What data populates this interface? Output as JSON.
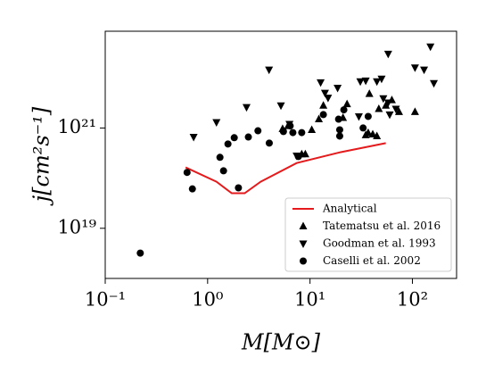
{
  "chart_data": {
    "type": "scatter",
    "xlabel": "M[M⊙]",
    "ylabel": "j[cm²s⁻¹]",
    "xscale": "log",
    "yscale": "log",
    "xlim": [
      0.1,
      270
    ],
    "ylim": [
      1e+18,
      8.5e+22
    ],
    "xticks": [
      {
        "value": 0.1,
        "label": "10⁻¹"
      },
      {
        "value": 1,
        "label": "10⁰"
      },
      {
        "value": 10,
        "label": "10¹"
      },
      {
        "value": 100,
        "label": "10²"
      }
    ],
    "yticks": [
      {
        "value": 1e+19,
        "label": "10¹⁹"
      },
      {
        "value": 1e+21,
        "label": "10²¹"
      }
    ],
    "legend": "lower right",
    "series": [
      {
        "name": "Analytical",
        "kind": "line",
        "color": "#e41a1c",
        "x": [
          0.61,
          1.22,
          1.72,
          2.3,
          3.3,
          7.4,
          20,
          55
        ],
        "values": [
          1.64e+20,
          8.5e+19,
          5e+19,
          5e+19,
          8.5e+19,
          2e+20,
          3.3e+20,
          5e+20
        ]
      },
      {
        "name": "Tatematsu et al. 2016",
        "kind": "marker",
        "marker": "triangle-up",
        "color": "#000000",
        "x": [
          5.4,
          6.1,
          8.3,
          9,
          10.4,
          12.2,
          13.5,
          21,
          23,
          38,
          37,
          41,
          45,
          47,
          55,
          63,
          74,
          106,
          35
        ],
        "values": [
          9.6e+20,
          1.1e+21,
          3e+20,
          3e+20,
          9.2e+20,
          1.5e+21,
          2.8e+21,
          1.6e+21,
          3e+21,
          4.8e+21,
          8e+20,
          7.5e+20,
          6.9e+20,
          2.4e+21,
          2.8e+21,
          3.6e+21,
          2.1e+21,
          2.1e+21,
          7.2e+20
        ]
      },
      {
        "name": "Goodman et al. 1993",
        "kind": "marker",
        "marker": "triangle-down",
        "color": "#000000",
        "x": [
          0.73,
          1.22,
          2.4,
          3.98,
          5.2,
          6.3,
          7.4,
          12.7,
          14,
          15,
          18.6,
          30,
          31,
          35,
          45,
          50,
          58,
          52,
          60,
          69,
          106,
          130,
          150,
          162,
          58
        ],
        "values": [
          6.6e+20,
          1.3e+21,
          2.6e+21,
          1.45e+22,
          2.8e+21,
          1.2e+21,
          2.8e+20,
          8.1e+21,
          5e+21,
          4e+21,
          6.3e+21,
          1.7e+21,
          8.5e+21,
          8.8e+21,
          8.5e+21,
          9.6e+21,
          3e+22,
          3.9e+21,
          1.85e+21,
          2.4e+21,
          1.6e+22,
          1.45e+22,
          4.2e+22,
          7.8e+21,
          3.2e+21
        ]
      },
      {
        "name": "Caselli et al. 2002",
        "kind": "marker",
        "marker": "circle",
        "color": "#000000",
        "x": [
          0.22,
          0.63,
          0.71,
          1.32,
          1.43,
          1.58,
          1.82,
          2.0,
          2.5,
          3.1,
          4.0,
          5.5,
          6.4,
          6.8,
          7.7,
          8.3,
          13.5,
          19,
          19.5,
          19.5,
          21.4,
          33,
          37
        ],
        "values": [
          3.2e+18,
          1.3e+20,
          6.1e+19,
          2.6e+20,
          1.4e+20,
          4.8e+20,
          6.4e+20,
          6.4e+19,
          6.6e+20,
          8.8e+20,
          5e+20,
          8.5e+20,
          1.1e+21,
          8.1e+20,
          2.7e+20,
          8.1e+20,
          1.85e+21,
          1.5e+21,
          9.2e+20,
          6.9e+20,
          2.3e+21,
          1e+21,
          1.7e+21
        ]
      }
    ]
  }
}
